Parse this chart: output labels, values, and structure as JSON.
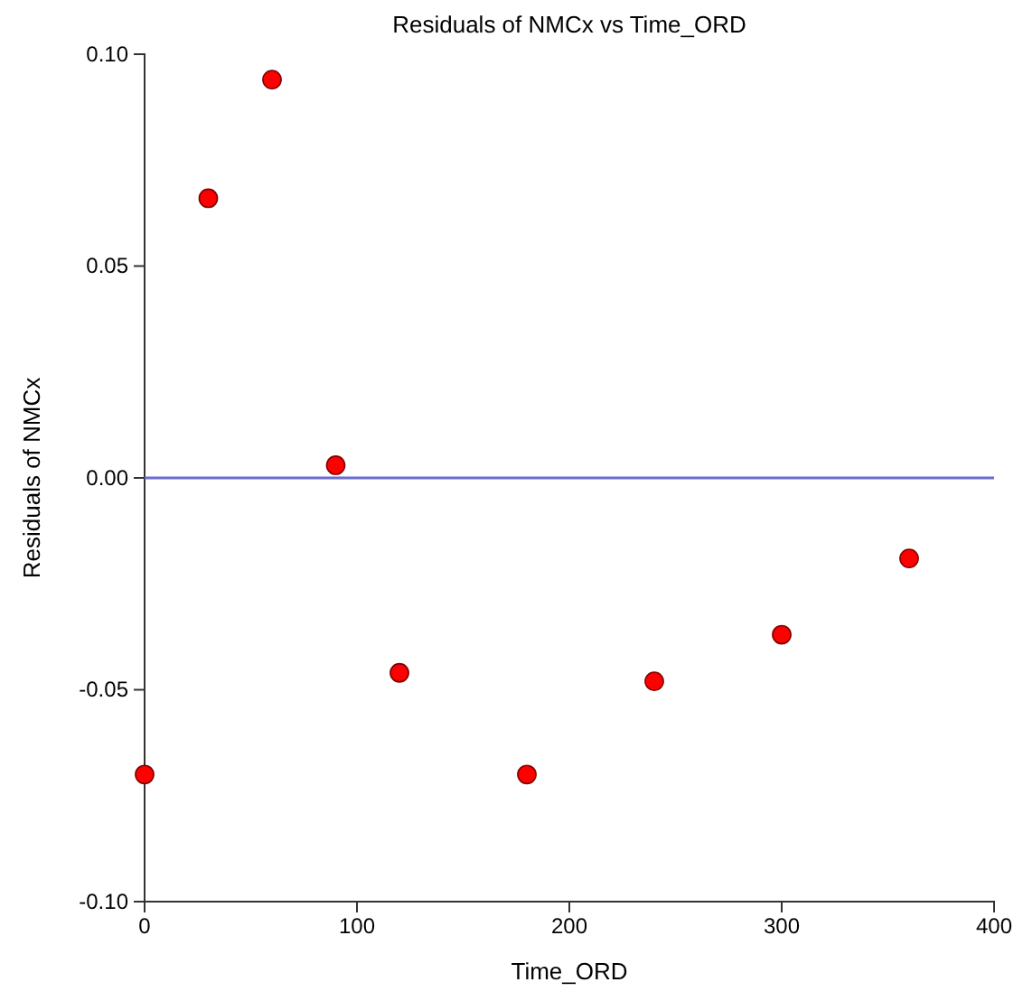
{
  "chart_data": {
    "type": "scatter",
    "title": "Residuals of NMCx vs Time_ORD",
    "xlabel": "Time_ORD",
    "ylabel": "Residuals of NMCx",
    "x": [
      0,
      30,
      60,
      90,
      120,
      180,
      240,
      300,
      360
    ],
    "series": [
      {
        "color": "#ff0000",
        "values": [
          -0.07,
          0.066,
          0.094,
          0.003,
          -0.046,
          -0.07,
          -0.048,
          -0.037,
          -0.019
        ]
      }
    ],
    "xlim": [
      0,
      400
    ],
    "xticks": [
      0,
      100,
      200,
      300,
      400
    ],
    "ylim": [
      -0.1,
      0.1
    ],
    "yticks": [
      {
        "value": -0.1,
        "label": "-0.10"
      },
      {
        "value": -0.05,
        "label": "-0.05"
      },
      {
        "value": 0,
        "label": "0.00"
      },
      {
        "value": 0.05,
        "label": "0.05"
      },
      {
        "value": 0.1,
        "label": "0.10"
      }
    ],
    "ref_lines": [
      {
        "axis": "y",
        "value": 0,
        "color": "#6b6bd0"
      }
    ],
    "marker": "circle",
    "grid": false
  }
}
